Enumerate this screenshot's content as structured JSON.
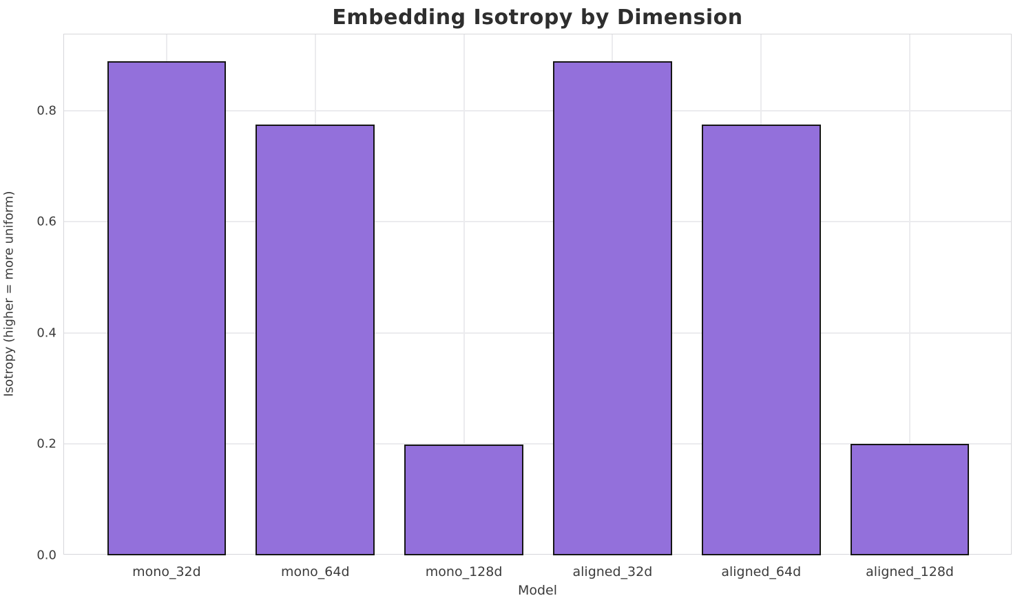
{
  "chart_data": {
    "type": "bar",
    "title": "Embedding Isotropy by Dimension",
    "xlabel": "Model",
    "ylabel": "Isotropy (higher = more uniform)",
    "categories": [
      "mono_32d",
      "mono_64d",
      "mono_128d",
      "aligned_32d",
      "aligned_64d",
      "aligned_128d"
    ],
    "values": [
      0.889,
      0.775,
      0.199,
      0.889,
      0.775,
      0.2
    ],
    "yticks": [
      0.0,
      0.2,
      0.4,
      0.6,
      0.8
    ],
    "ytick_labels": [
      "0.0",
      "0.2",
      "0.4",
      "0.6",
      "0.8"
    ],
    "ylim": [
      0,
      0.9374
    ],
    "xlim": [
      -0.69,
      5.69
    ],
    "bar_width_fraction": 0.8,
    "grid": "both",
    "legend": "none",
    "colors": {
      "bar_fill": "#9370db",
      "bar_edge": "#151515",
      "grid": "#ebebee",
      "spine": "#d6d6da",
      "tick_text": "#3b3b3b",
      "title_text": "#2e2e2e",
      "background": "#ffffff"
    }
  }
}
